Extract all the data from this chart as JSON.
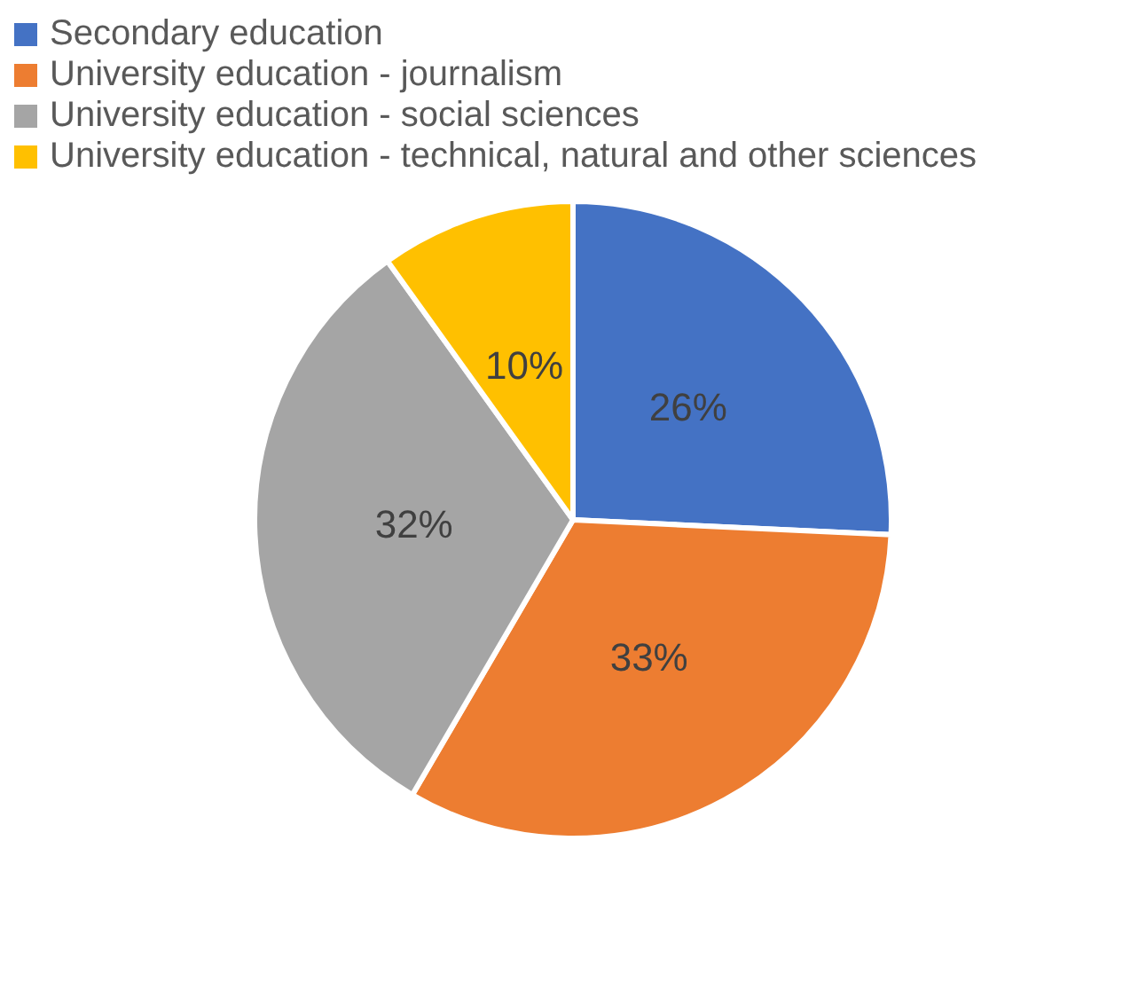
{
  "chart_data": {
    "type": "pie",
    "categories": [
      "Secondary education",
      "University education - journalism",
      "University education - social sciences",
      "University education - technical, natural and other sciences"
    ],
    "values": [
      26,
      33,
      32,
      10
    ],
    "colors": [
      "#4472c4",
      "#ed7d31",
      "#a5a5a5",
      "#ffc000"
    ],
    "value_labels": [
      "26%",
      "33%",
      "32%",
      "10%"
    ],
    "legend": "top left"
  }
}
